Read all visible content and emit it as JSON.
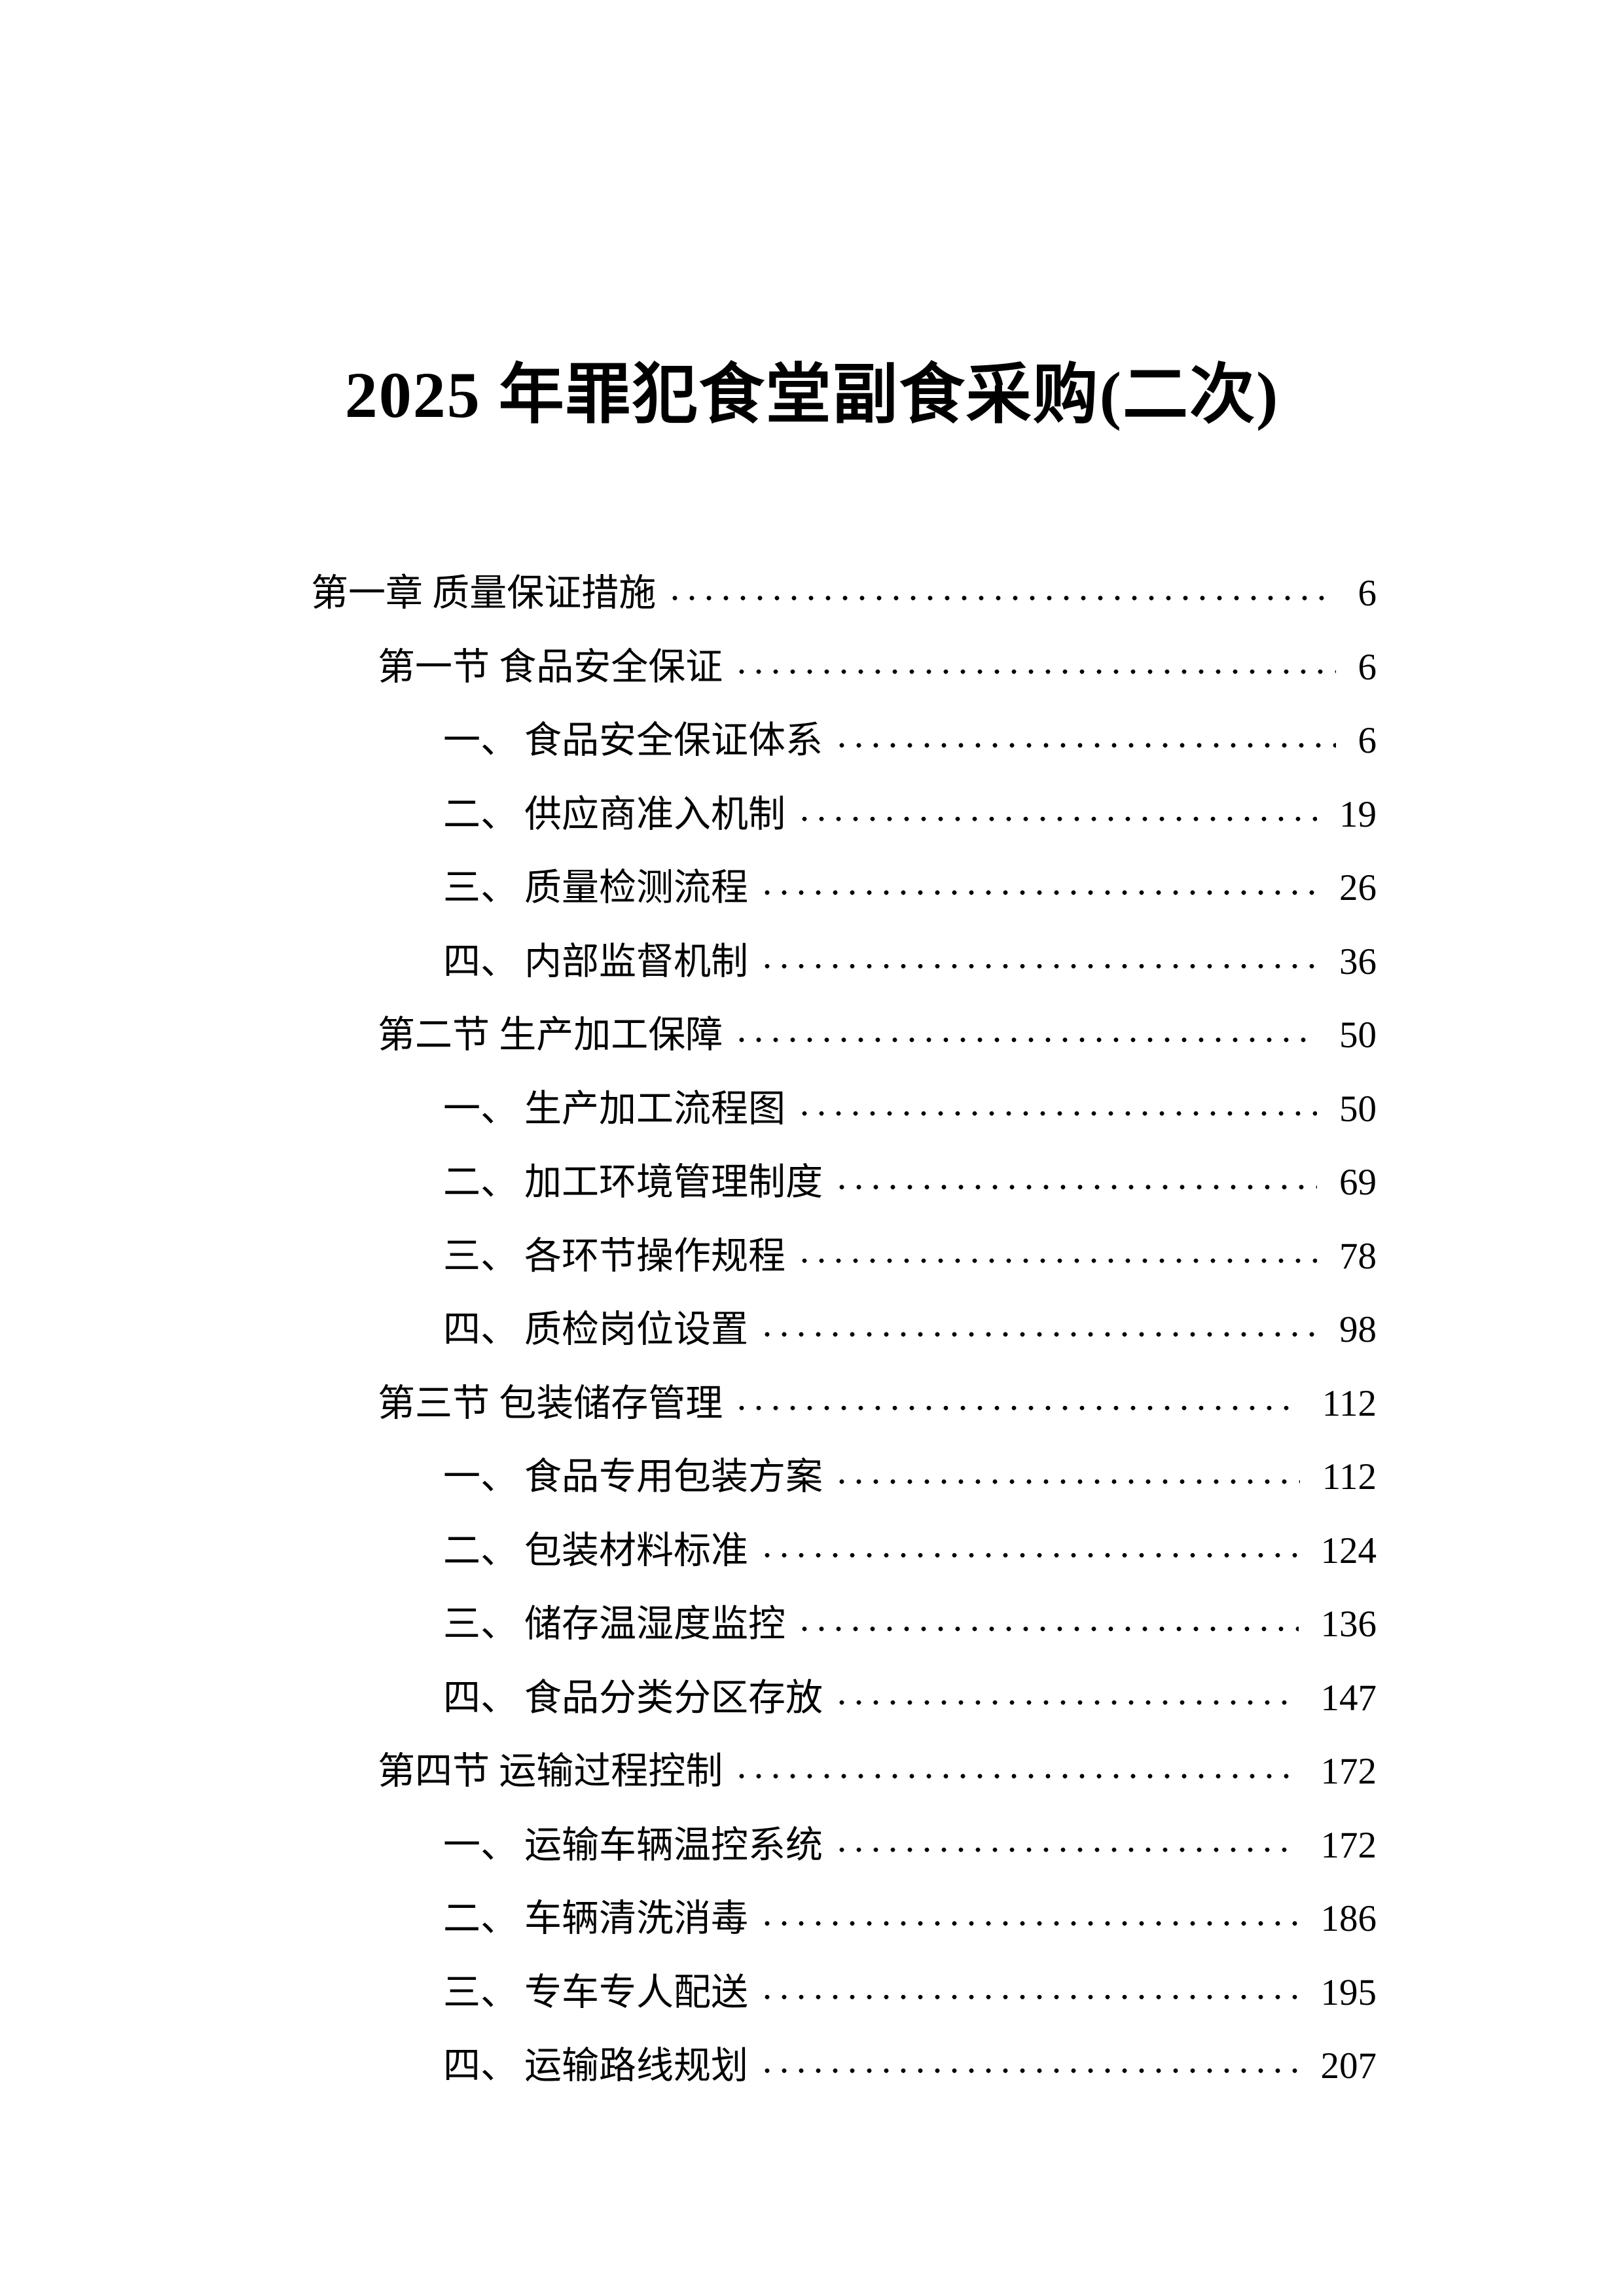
{
  "document": {
    "title": "2025 年罪犯食堂副食采购(二次)"
  },
  "toc": {
    "entries": [
      {
        "level": 1,
        "num": "",
        "label": "第一章 质量保证措施",
        "page": "6"
      },
      {
        "level": 2,
        "num": "",
        "label": "第一节 食品安全保证",
        "page": "6"
      },
      {
        "level": 3,
        "num": "一、",
        "label": "食品安全保证体系",
        "page": "6"
      },
      {
        "level": 3,
        "num": "二、",
        "label": "供应商准入机制",
        "page": "19"
      },
      {
        "level": 3,
        "num": "三、",
        "label": "质量检测流程",
        "page": "26"
      },
      {
        "level": 3,
        "num": "四、",
        "label": "内部监督机制",
        "page": "36"
      },
      {
        "level": 2,
        "num": "",
        "label": "第二节 生产加工保障",
        "page": "50"
      },
      {
        "level": 3,
        "num": "一、",
        "label": "生产加工流程图",
        "page": "50"
      },
      {
        "level": 3,
        "num": "二、",
        "label": "加工环境管理制度",
        "page": "69"
      },
      {
        "level": 3,
        "num": "三、",
        "label": "各环节操作规程",
        "page": "78"
      },
      {
        "level": 3,
        "num": "四、",
        "label": "质检岗位设置",
        "page": "98"
      },
      {
        "level": 2,
        "num": "",
        "label": "第三节 包装储存管理",
        "page": "112"
      },
      {
        "level": 3,
        "num": "一、",
        "label": "食品专用包装方案",
        "page": "112"
      },
      {
        "level": 3,
        "num": "二、",
        "label": "包装材料标准",
        "page": "124"
      },
      {
        "level": 3,
        "num": "三、",
        "label": "储存温湿度监控",
        "page": "136"
      },
      {
        "level": 3,
        "num": "四、",
        "label": "食品分类分区存放",
        "page": "147"
      },
      {
        "level": 2,
        "num": "",
        "label": "第四节 运输过程控制",
        "page": "172"
      },
      {
        "level": 3,
        "num": "一、",
        "label": "运输车辆温控系统",
        "page": "172"
      },
      {
        "level": 3,
        "num": "二、",
        "label": "车辆清洗消毒",
        "page": "186"
      },
      {
        "level": 3,
        "num": "三、",
        "label": "专车专人配送",
        "page": "195"
      },
      {
        "level": 3,
        "num": "四、",
        "label": "运输路线规划",
        "page": "207"
      }
    ]
  }
}
